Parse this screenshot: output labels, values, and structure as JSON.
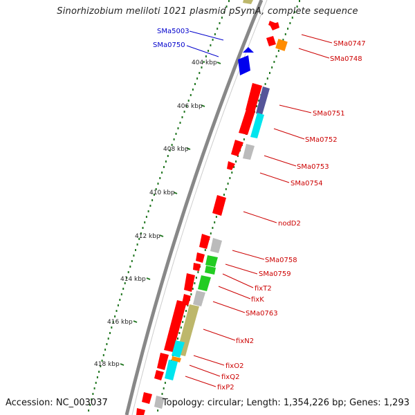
{
  "title": "Sinorhizobium meliloti 1021 plasmid pSymA, complete sequence",
  "footer": {
    "accession": "Accession: NC_003037",
    "summary": "Topology: circular; Length: 1,354,226 bp; Genes: 1,293"
  },
  "colors": {
    "forward_cds": "#ff0000",
    "reverse_cds": "#ff0000",
    "forward_label": "#0000cc",
    "backbone": "#808080",
    "tick": "#227722",
    "cog_gray": "#bbbbbb",
    "cog_cyan": "#00e5ee",
    "cog_green": "#22cc22",
    "cog_olive": "#bdb76b",
    "cog_navy": "#555599",
    "cog_orange": "#ff8c00",
    "cog_blue": "#0000ee"
  },
  "ruler": [
    {
      "label": "404 kbp"
    },
    {
      "label": "406 kbp"
    },
    {
      "label": "408 kbp"
    },
    {
      "label": "410 kbp"
    },
    {
      "label": "412 kbp"
    },
    {
      "label": "414 kbp"
    },
    {
      "label": "416 kbp"
    },
    {
      "label": "418 kbp"
    }
  ],
  "genes_left": [
    {
      "label": "SMa5003"
    },
    {
      "label": "SMa0750"
    }
  ],
  "genes_right": [
    {
      "label": "SMa0747"
    },
    {
      "label": "SMa0748"
    },
    {
      "label": "SMa0751"
    },
    {
      "label": "SMa0752"
    },
    {
      "label": "SMa0753"
    },
    {
      "label": "SMa0754"
    },
    {
      "label": "nodD2"
    },
    {
      "label": "SMa0758"
    },
    {
      "label": "SMa0759"
    },
    {
      "label": "fixT2"
    },
    {
      "label": "fixK"
    },
    {
      "label": "SMa0763"
    },
    {
      "label": "fixN2"
    },
    {
      "label": "fixO2"
    },
    {
      "label": "fixQ2"
    },
    {
      "label": "fixP2"
    }
  ]
}
